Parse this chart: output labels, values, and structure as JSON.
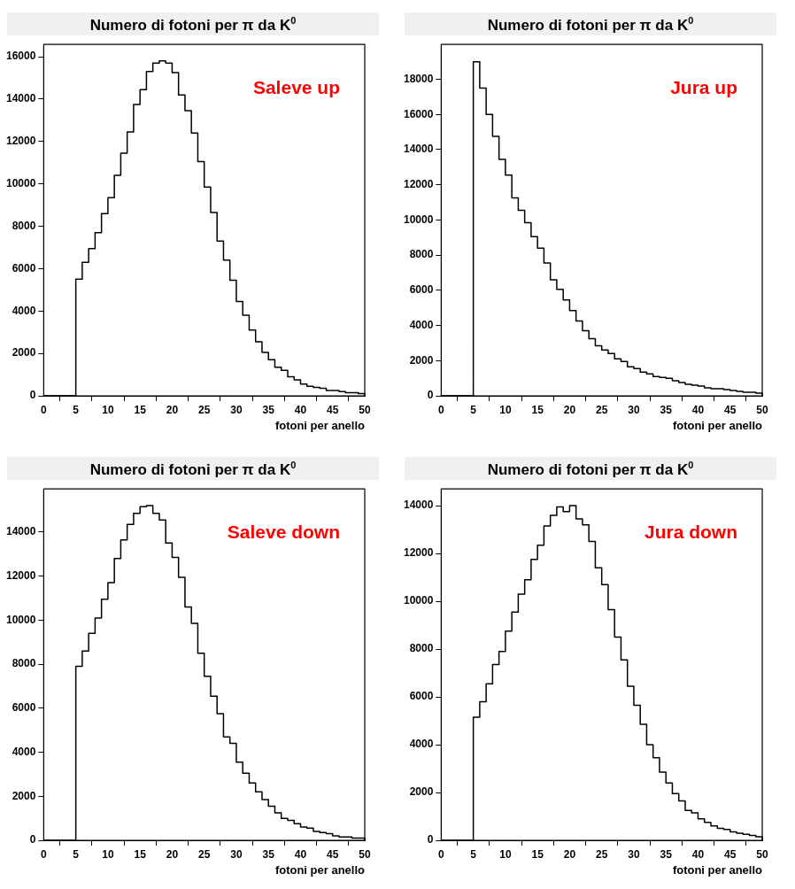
{
  "chart_data": [
    {
      "type": "histogram",
      "title": "Numero di fotoni per  π da K$^{0}$",
      "xlabel": "fotoni per anello",
      "annotations": [
        "Saleve up"
      ],
      "color": "#000000",
      "grid": false,
      "xlim": [
        0,
        50
      ],
      "xticks": [
        0,
        5,
        10,
        15,
        20,
        25,
        30,
        35,
        40,
        45,
        50
      ],
      "ylim": [
        0,
        16580
      ],
      "yticks": [
        0,
        2000,
        4000,
        6000,
        8000,
        10000,
        12000,
        14000,
        16000
      ],
      "bins": [
        0,
        1,
        2,
        3,
        4,
        5,
        6,
        7,
        8,
        9,
        10,
        11,
        12,
        13,
        14,
        15,
        16,
        17,
        18,
        19,
        20,
        21,
        22,
        23,
        24,
        25,
        26,
        27,
        28,
        29,
        30,
        31,
        32,
        33,
        34,
        35,
        36,
        37,
        38,
        39,
        40,
        41,
        42,
        43,
        44,
        45,
        46,
        47,
        48,
        49,
        50
      ],
      "values": [
        0,
        0,
        0,
        0,
        0,
        5500,
        6300,
        6950,
        7700,
        8600,
        9350,
        10400,
        11450,
        12450,
        13750,
        14450,
        15300,
        15700,
        15800,
        15700,
        15250,
        14200,
        13450,
        12400,
        11050,
        9850,
        8650,
        7300,
        6400,
        5450,
        4450,
        3800,
        3100,
        2550,
        2050,
        1700,
        1350,
        1200,
        900,
        750,
        550,
        450,
        400,
        350,
        250,
        250,
        200,
        150,
        150,
        100
      ]
    },
    {
      "type": "histogram",
      "title": "Numero di fotoni per  π da K$^{0}$",
      "xlabel": "fotoni per anello",
      "annotations": [
        "Jura up"
      ],
      "color": "#000000",
      "grid": false,
      "xlim": [
        0,
        50
      ],
      "xticks": [
        0,
        5,
        10,
        15,
        20,
        25,
        30,
        35,
        40,
        45,
        50
      ],
      "ylim": [
        0,
        19980
      ],
      "yticks": [
        0,
        2000,
        4000,
        6000,
        8000,
        10000,
        12000,
        14000,
        16000,
        18000
      ],
      "bins": [
        0,
        1,
        2,
        3,
        4,
        5,
        6,
        7,
        8,
        9,
        10,
        11,
        12,
        13,
        14,
        15,
        16,
        17,
        18,
        19,
        20,
        21,
        22,
        23,
        24,
        25,
        26,
        27,
        28,
        29,
        30,
        31,
        32,
        33,
        34,
        35,
        36,
        37,
        38,
        39,
        40,
        41,
        42,
        43,
        44,
        45,
        46,
        47,
        48,
        49,
        50
      ],
      "values": [
        0,
        0,
        0,
        0,
        0,
        19000,
        17500,
        16000,
        14750,
        13450,
        12550,
        11250,
        10550,
        9850,
        9050,
        8400,
        7550,
        6600,
        6050,
        5450,
        4850,
        4250,
        3700,
        3250,
        2850,
        2600,
        2400,
        2100,
        1950,
        1650,
        1550,
        1350,
        1250,
        1100,
        1050,
        1000,
        850,
        750,
        650,
        600,
        550,
        450,
        400,
        400,
        350,
        300,
        250,
        200,
        200,
        150
      ]
    },
    {
      "type": "histogram",
      "title": "Numero di fotoni per  π da K$^{0}$",
      "xlabel": "fotoni per anello",
      "annotations": [
        "Saleve down"
      ],
      "color": "#000000",
      "grid": false,
      "xlim": [
        0,
        50
      ],
      "xticks": [
        0,
        5,
        10,
        15,
        20,
        25,
        30,
        35,
        40,
        45,
        50
      ],
      "ylim": [
        0,
        15960
      ],
      "yticks": [
        0,
        2000,
        4000,
        6000,
        8000,
        10000,
        12000,
        14000
      ],
      "bins": [
        0,
        1,
        2,
        3,
        4,
        5,
        6,
        7,
        8,
        9,
        10,
        11,
        12,
        13,
        14,
        15,
        16,
        17,
        18,
        19,
        20,
        21,
        22,
        23,
        24,
        25,
        26,
        27,
        28,
        29,
        30,
        31,
        32,
        33,
        34,
        35,
        36,
        37,
        38,
        39,
        40,
        41,
        42,
        43,
        44,
        45,
        46,
        47,
        48,
        49,
        50
      ],
      "values": [
        0,
        0,
        0,
        0,
        0,
        7900,
        8600,
        9400,
        10100,
        10950,
        11700,
        12800,
        13650,
        14350,
        14850,
        15150,
        15200,
        14850,
        14550,
        13500,
        12850,
        11950,
        10600,
        9850,
        8500,
        7450,
        6550,
        5750,
        4700,
        4400,
        3550,
        3050,
        2600,
        2200,
        1850,
        1550,
        1250,
        1000,
        900,
        750,
        600,
        550,
        400,
        350,
        300,
        200,
        150,
        150,
        100,
        100
      ]
    },
    {
      "type": "histogram",
      "title": "Numero di fotoni per  π da K$^{0}$",
      "xlabel": "fotoni per anello",
      "annotations": [
        "Jura down"
      ],
      "color": "#000000",
      "grid": false,
      "xlim": [
        0,
        50
      ],
      "xticks": [
        0,
        5,
        10,
        15,
        20,
        25,
        30,
        35,
        40,
        45,
        50
      ],
      "ylim": [
        0,
        14700
      ],
      "yticks": [
        0,
        2000,
        4000,
        6000,
        8000,
        10000,
        12000,
        14000
      ],
      "bins": [
        0,
        1,
        2,
        3,
        4,
        5,
        6,
        7,
        8,
        9,
        10,
        11,
        12,
        13,
        14,
        15,
        16,
        17,
        18,
        19,
        20,
        21,
        22,
        23,
        24,
        25,
        26,
        27,
        28,
        29,
        30,
        31,
        32,
        33,
        34,
        35,
        36,
        37,
        38,
        39,
        40,
        41,
        42,
        43,
        44,
        45,
        46,
        47,
        48,
        49,
        50
      ],
      "values": [
        0,
        0,
        0,
        0,
        0,
        5150,
        5800,
        6550,
        7350,
        7900,
        8750,
        9550,
        10300,
        10900,
        11750,
        12350,
        13150,
        13600,
        13950,
        13750,
        14000,
        13450,
        13200,
        12500,
        11400,
        10700,
        9650,
        8500,
        7550,
        6450,
        5650,
        4850,
        4000,
        3450,
        2850,
        2400,
        1950,
        1650,
        1250,
        1150,
        900,
        750,
        600,
        500,
        450,
        350,
        300,
        250,
        200,
        150
      ]
    }
  ]
}
